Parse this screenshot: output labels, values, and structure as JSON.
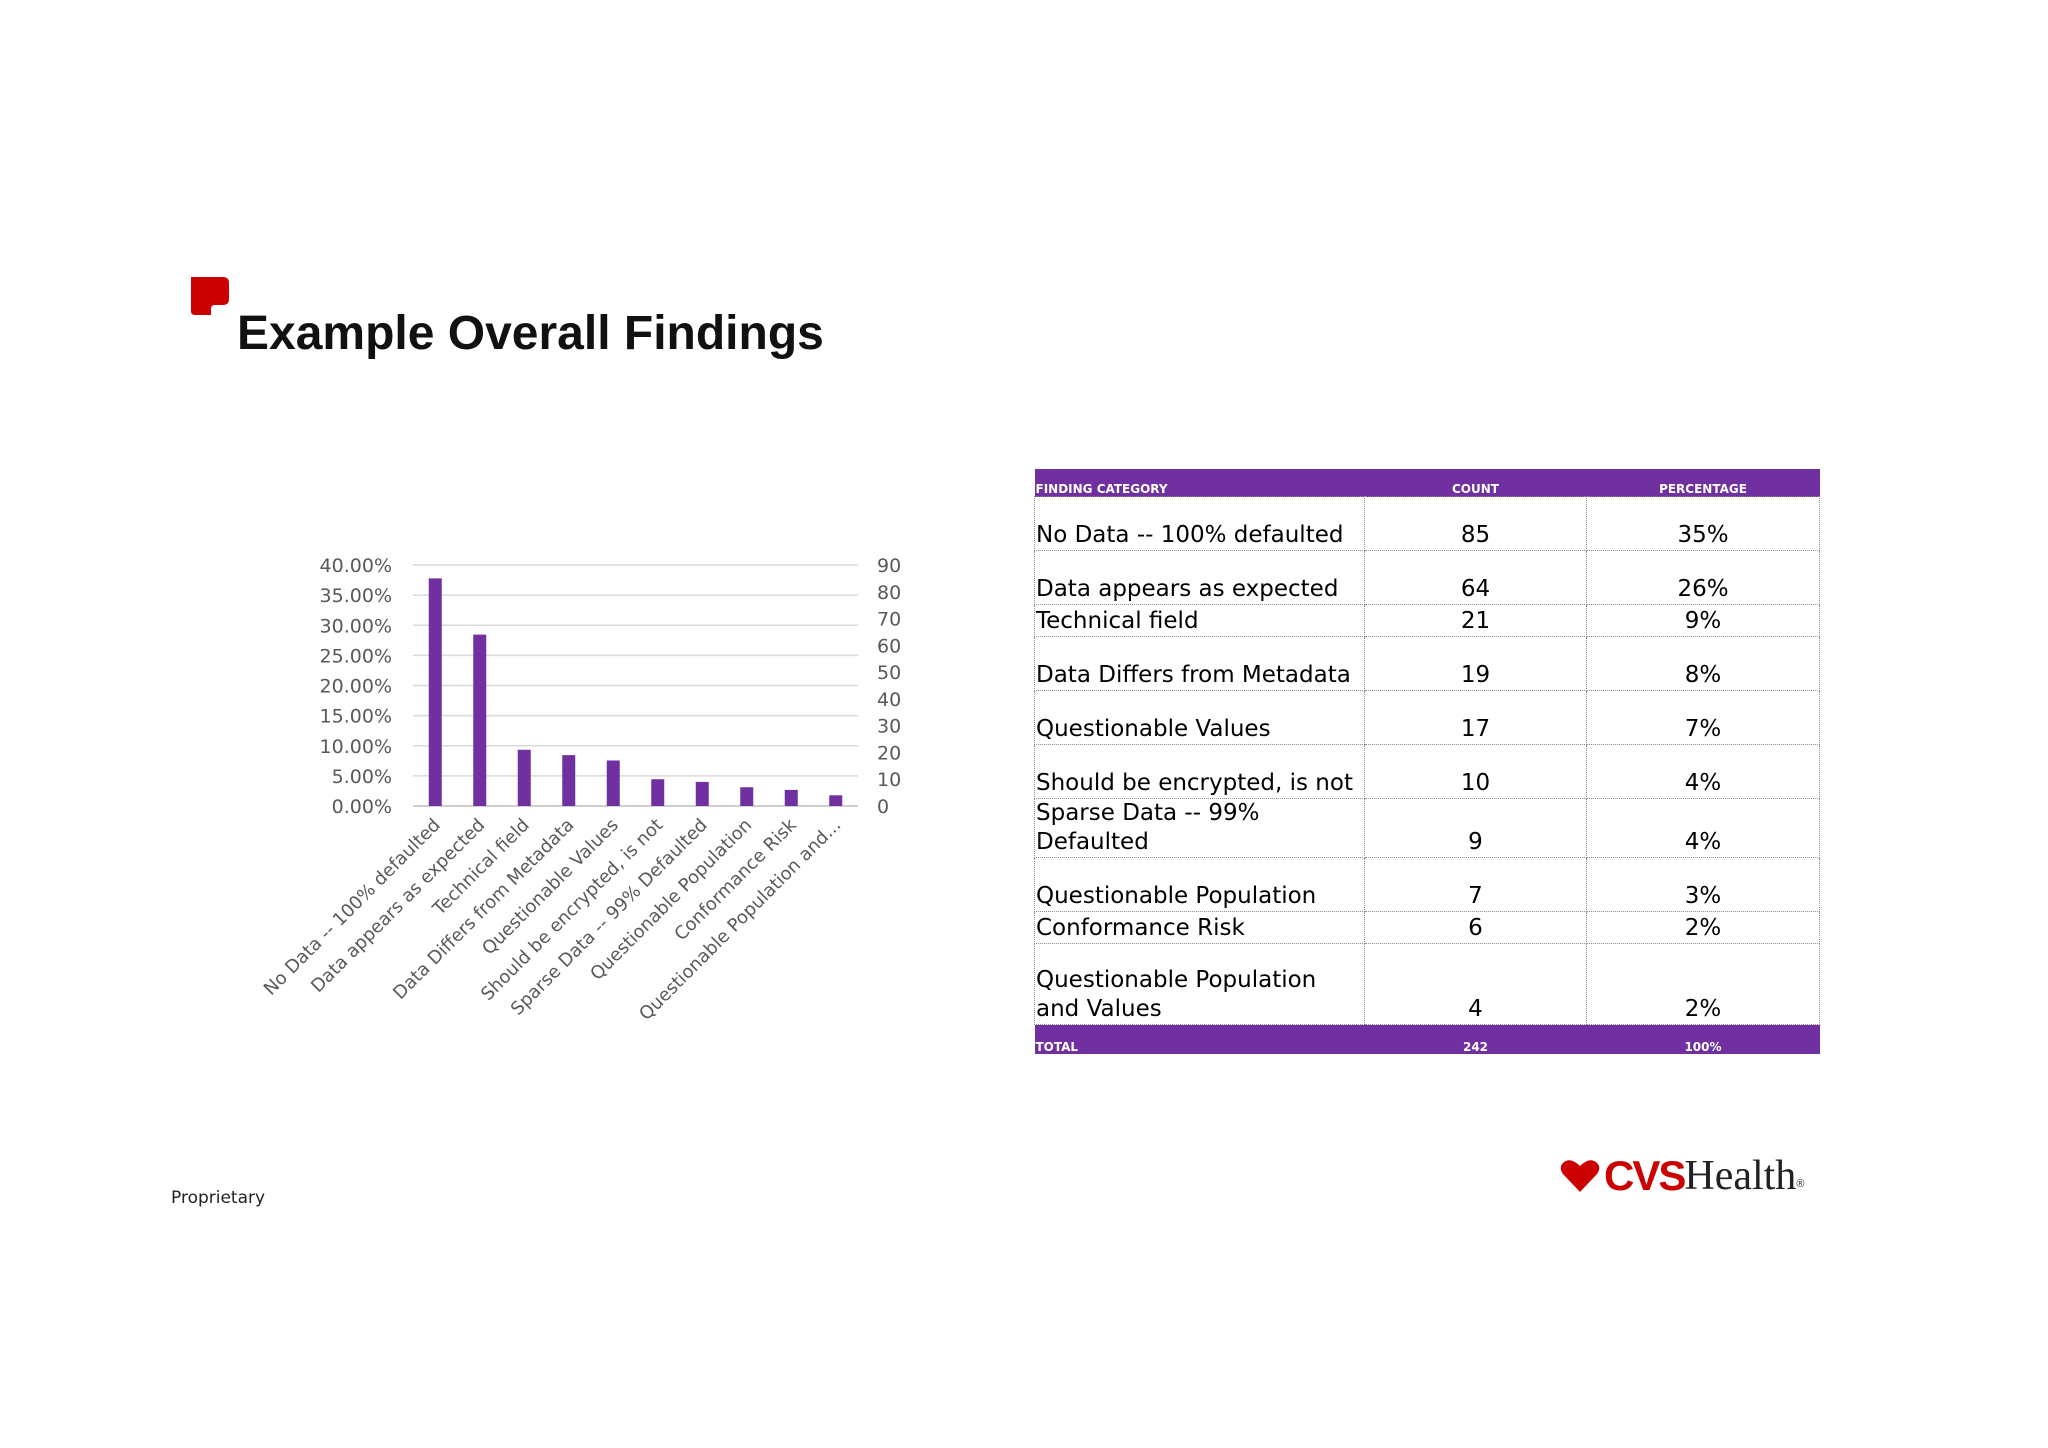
{
  "slide": {
    "title": "Example Overall Findings",
    "footer_note": "Proprietary",
    "accent_color": "#cc0000"
  },
  "brand": {
    "name_bold": "CVS",
    "name_regular": "Health",
    "registered_mark": "®",
    "icon": "heart-icon",
    "color": "#cc0000"
  },
  "chart_data": {
    "type": "bar",
    "categories": [
      "No Data -- 100% defaulted",
      "Data appears as expected",
      "Technical field",
      "Data Differs from Metadata",
      "Questionable Values",
      "Should be encrypted, is not",
      "Sparse Data -- 99% Defaulted",
      "Questionable Population",
      "Conformance Risk",
      "Questionable Population and..."
    ],
    "values": [
      85,
      64,
      21,
      19,
      17,
      10,
      9,
      7,
      6,
      4
    ],
    "y_left": {
      "ticks": [
        "0.00%",
        "5.00%",
        "10.00%",
        "15.00%",
        "20.00%",
        "25.00%",
        "30.00%",
        "35.00%",
        "40.00%"
      ],
      "ylim": [
        0,
        0.4
      ]
    },
    "y_right": {
      "ticks": [
        "0",
        "10",
        "20",
        "30",
        "40",
        "50",
        "60",
        "70",
        "80",
        "90"
      ],
      "ylim": [
        0,
        90
      ]
    },
    "grid": true,
    "bar_color": "#7030a0",
    "grid_color": "#d9d9d9",
    "legend": false
  },
  "table": {
    "header_color": "#7030a0",
    "columns": [
      "FINDING CATEGORY",
      "COUNT",
      "PERCENTAGE"
    ],
    "rows": [
      {
        "category": "No Data -- 100% defaulted",
        "count": "85",
        "percentage": "35%"
      },
      {
        "category": "Data appears as expected",
        "count": "64",
        "percentage": "26%"
      },
      {
        "category": "Technical field",
        "count": "21",
        "percentage": "9%"
      },
      {
        "category": "Data Differs from Metadata",
        "count": "19",
        "percentage": "8%"
      },
      {
        "category": "Questionable Values",
        "count": "17",
        "percentage": "7%"
      },
      {
        "category": "Should be encrypted, is not",
        "count": "10",
        "percentage": "4%"
      },
      {
        "category": "Sparse Data -- 99% Defaulted",
        "count": "9",
        "percentage": "4%"
      },
      {
        "category": "Questionable Population",
        "count": "7",
        "percentage": "3%"
      },
      {
        "category": "Conformance Risk",
        "count": "6",
        "percentage": "2%"
      },
      {
        "category": "Questionable Population and Values",
        "count": "4",
        "percentage": "2%"
      }
    ],
    "total": {
      "label": "TOTAL",
      "count": "242",
      "percentage": "100%"
    }
  }
}
